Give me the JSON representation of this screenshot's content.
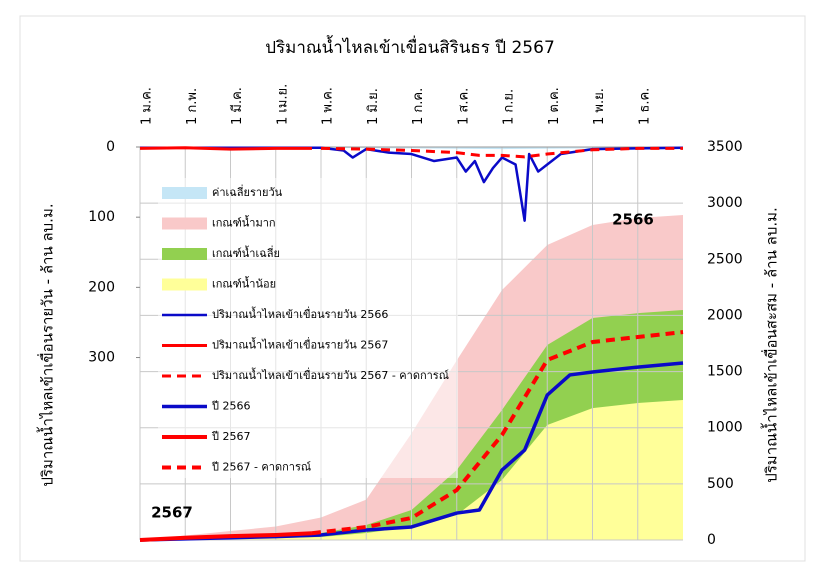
{
  "chart_data": {
    "type": "line",
    "title": "ปริมาณน้ำไหลเข้าเขื่อนสิรินธร ปี 2567",
    "ylabel": "ปริมาณน้ำไหลเข้าเขื่อนรายวัน - ล้าน ลบ.ม.",
    "y2label": "ปริมาณน้ำไหลเข้าเขื่อนสะสม - ล้าน ลบ.ม.",
    "xlim": [
      0,
      12
    ],
    "xticks": [
      {
        "value": 0,
        "label": "1 ม.ค."
      },
      {
        "value": 1,
        "label": "1 ก.พ."
      },
      {
        "value": 2,
        "label": "1 มี.ค."
      },
      {
        "value": 3,
        "label": "1 เม.ย."
      },
      {
        "value": 4,
        "label": "1 พ.ค."
      },
      {
        "value": 5,
        "label": "1 มิ.ย."
      },
      {
        "value": 6,
        "label": "1 ก.ค."
      },
      {
        "value": 7,
        "label": "1 ส.ค."
      },
      {
        "value": 8,
        "label": "1 ก.ย."
      },
      {
        "value": 9,
        "label": "1 ต.ค."
      },
      {
        "value": 10,
        "label": "1 พ.ย."
      },
      {
        "value": 11,
        "label": "1 ธ.ค."
      }
    ],
    "ylim": [
      0,
      560
    ],
    "y_inverted": true,
    "yticks": [
      0,
      100,
      200,
      300
    ],
    "y2lim": [
      0,
      3500
    ],
    "y2ticks": [
      0,
      500,
      1000,
      1500,
      2000,
      2500,
      3000,
      3500
    ],
    "grid": true,
    "annotations": [
      {
        "text": "2566",
        "color": "#1f1fd0"
      },
      {
        "text": "2567",
        "color": "#e81c1c"
      }
    ],
    "series": [
      {
        "name": "เกณฑ์น้ำมาก",
        "kind": "area",
        "color": "#f9c9c9",
        "axis": "y2",
        "x": [
          0,
          1,
          2,
          3,
          4,
          5,
          6,
          7,
          8,
          9,
          10,
          11,
          12
        ],
        "values": [
          0,
          40,
          80,
          120,
          200,
          360,
          950,
          1600,
          2226,
          2627,
          2805,
          2868,
          2894
        ]
      },
      {
        "name": "เกณฑ์น้ำเฉลี่ย",
        "kind": "area",
        "color": "#92d050",
        "axis": "y2",
        "x": [
          0,
          1,
          2,
          3,
          4,
          5,
          6,
          7,
          8,
          9,
          10,
          11,
          12
        ],
        "values": [
          0,
          12,
          25,
          40,
          62,
          134,
          267,
          623,
          1158,
          1737,
          1977,
          2020,
          2048
        ]
      },
      {
        "name": "เกณฑ์น้ำน้อย",
        "kind": "area",
        "color": "#ffff99",
        "axis": "y2",
        "x": [
          0,
          1,
          2,
          3,
          4,
          5,
          6,
          7,
          8,
          9,
          10,
          11,
          12
        ],
        "values": [
          0,
          6,
          12,
          18,
          27,
          62,
          116,
          223,
          534,
          1024,
          1175,
          1220,
          1247
        ]
      },
      {
        "name": "ค่าเฉลี่ยรายวัน",
        "kind": "area",
        "color": "#c5e6f6",
        "axis": "y",
        "x": [
          0,
          3,
          6,
          8,
          10,
          12
        ],
        "values": [
          1,
          1,
          2,
          3,
          2,
          1
        ]
      },
      {
        "name": "ปริมาณน้ำไหลเข้าเขื่อนรายวัน 2566",
        "kind": "line",
        "color": "#0a0ac8",
        "width": 2.5,
        "axis": "y",
        "x": [
          0,
          4,
          4.5,
          4.7,
          5,
          5.5,
          6,
          6.5,
          7,
          7.2,
          7.4,
          7.6,
          7.8,
          8,
          8.3,
          8.5,
          8.6,
          8.8,
          9,
          9.3,
          10,
          11,
          12
        ],
        "values": [
          1,
          1,
          5,
          15,
          3,
          8,
          10,
          20,
          15,
          35,
          20,
          50,
          30,
          15,
          25,
          105,
          10,
          35,
          25,
          10,
          3,
          2,
          1
        ]
      },
      {
        "name": "ปริมาณน้ำไหลเข้าเขื่อนรายวัน 2567",
        "kind": "line",
        "color": "#ff0000",
        "width": 3,
        "axis": "y",
        "x": [
          0,
          1,
          2,
          3,
          3.8
        ],
        "values": [
          2,
          1,
          3,
          2,
          2
        ]
      },
      {
        "name": "ปริมาณน้ำไหลเข้าเขื่อนรายวัน 2567 - คาดการณ์",
        "kind": "line",
        "dash": true,
        "color": "#ff0000",
        "width": 3,
        "axis": "y",
        "x": [
          4,
          5,
          6,
          7,
          7.5,
          8,
          8.5,
          9,
          10,
          11,
          12
        ],
        "values": [
          2,
          3,
          5,
          8,
          12,
          12,
          14,
          10,
          4,
          2,
          2
        ]
      },
      {
        "name": "ปี 2566",
        "kind": "line",
        "color": "#0a0ac8",
        "width": 3.5,
        "axis": "y2",
        "x": [
          0,
          1,
          2,
          3,
          4,
          5,
          6,
          7,
          7.5,
          8,
          8.5,
          9,
          9.5,
          10,
          11,
          12
        ],
        "values": [
          0,
          10,
          20,
          30,
          45,
          89,
          116,
          240,
          267,
          623,
          801,
          1291,
          1470,
          1496,
          1540,
          1576
        ]
      },
      {
        "name": "ปี 2567",
        "kind": "line",
        "color": "#ff0000",
        "width": 4,
        "axis": "y2",
        "x": [
          0,
          1,
          2,
          3,
          3.8
        ],
        "values": [
          0,
          20,
          35,
          45,
          60
        ]
      },
      {
        "name": "ปี 2567 - คาดการณ์",
        "kind": "line",
        "dash": true,
        "color": "#ff0000",
        "width": 4,
        "axis": "y2",
        "x": [
          3.8,
          4,
          5,
          6,
          7,
          8,
          9,
          10,
          11,
          12
        ],
        "values": [
          60,
          70,
          116,
          196,
          445,
          935,
          1603,
          1763,
          1808,
          1852
        ]
      }
    ]
  }
}
